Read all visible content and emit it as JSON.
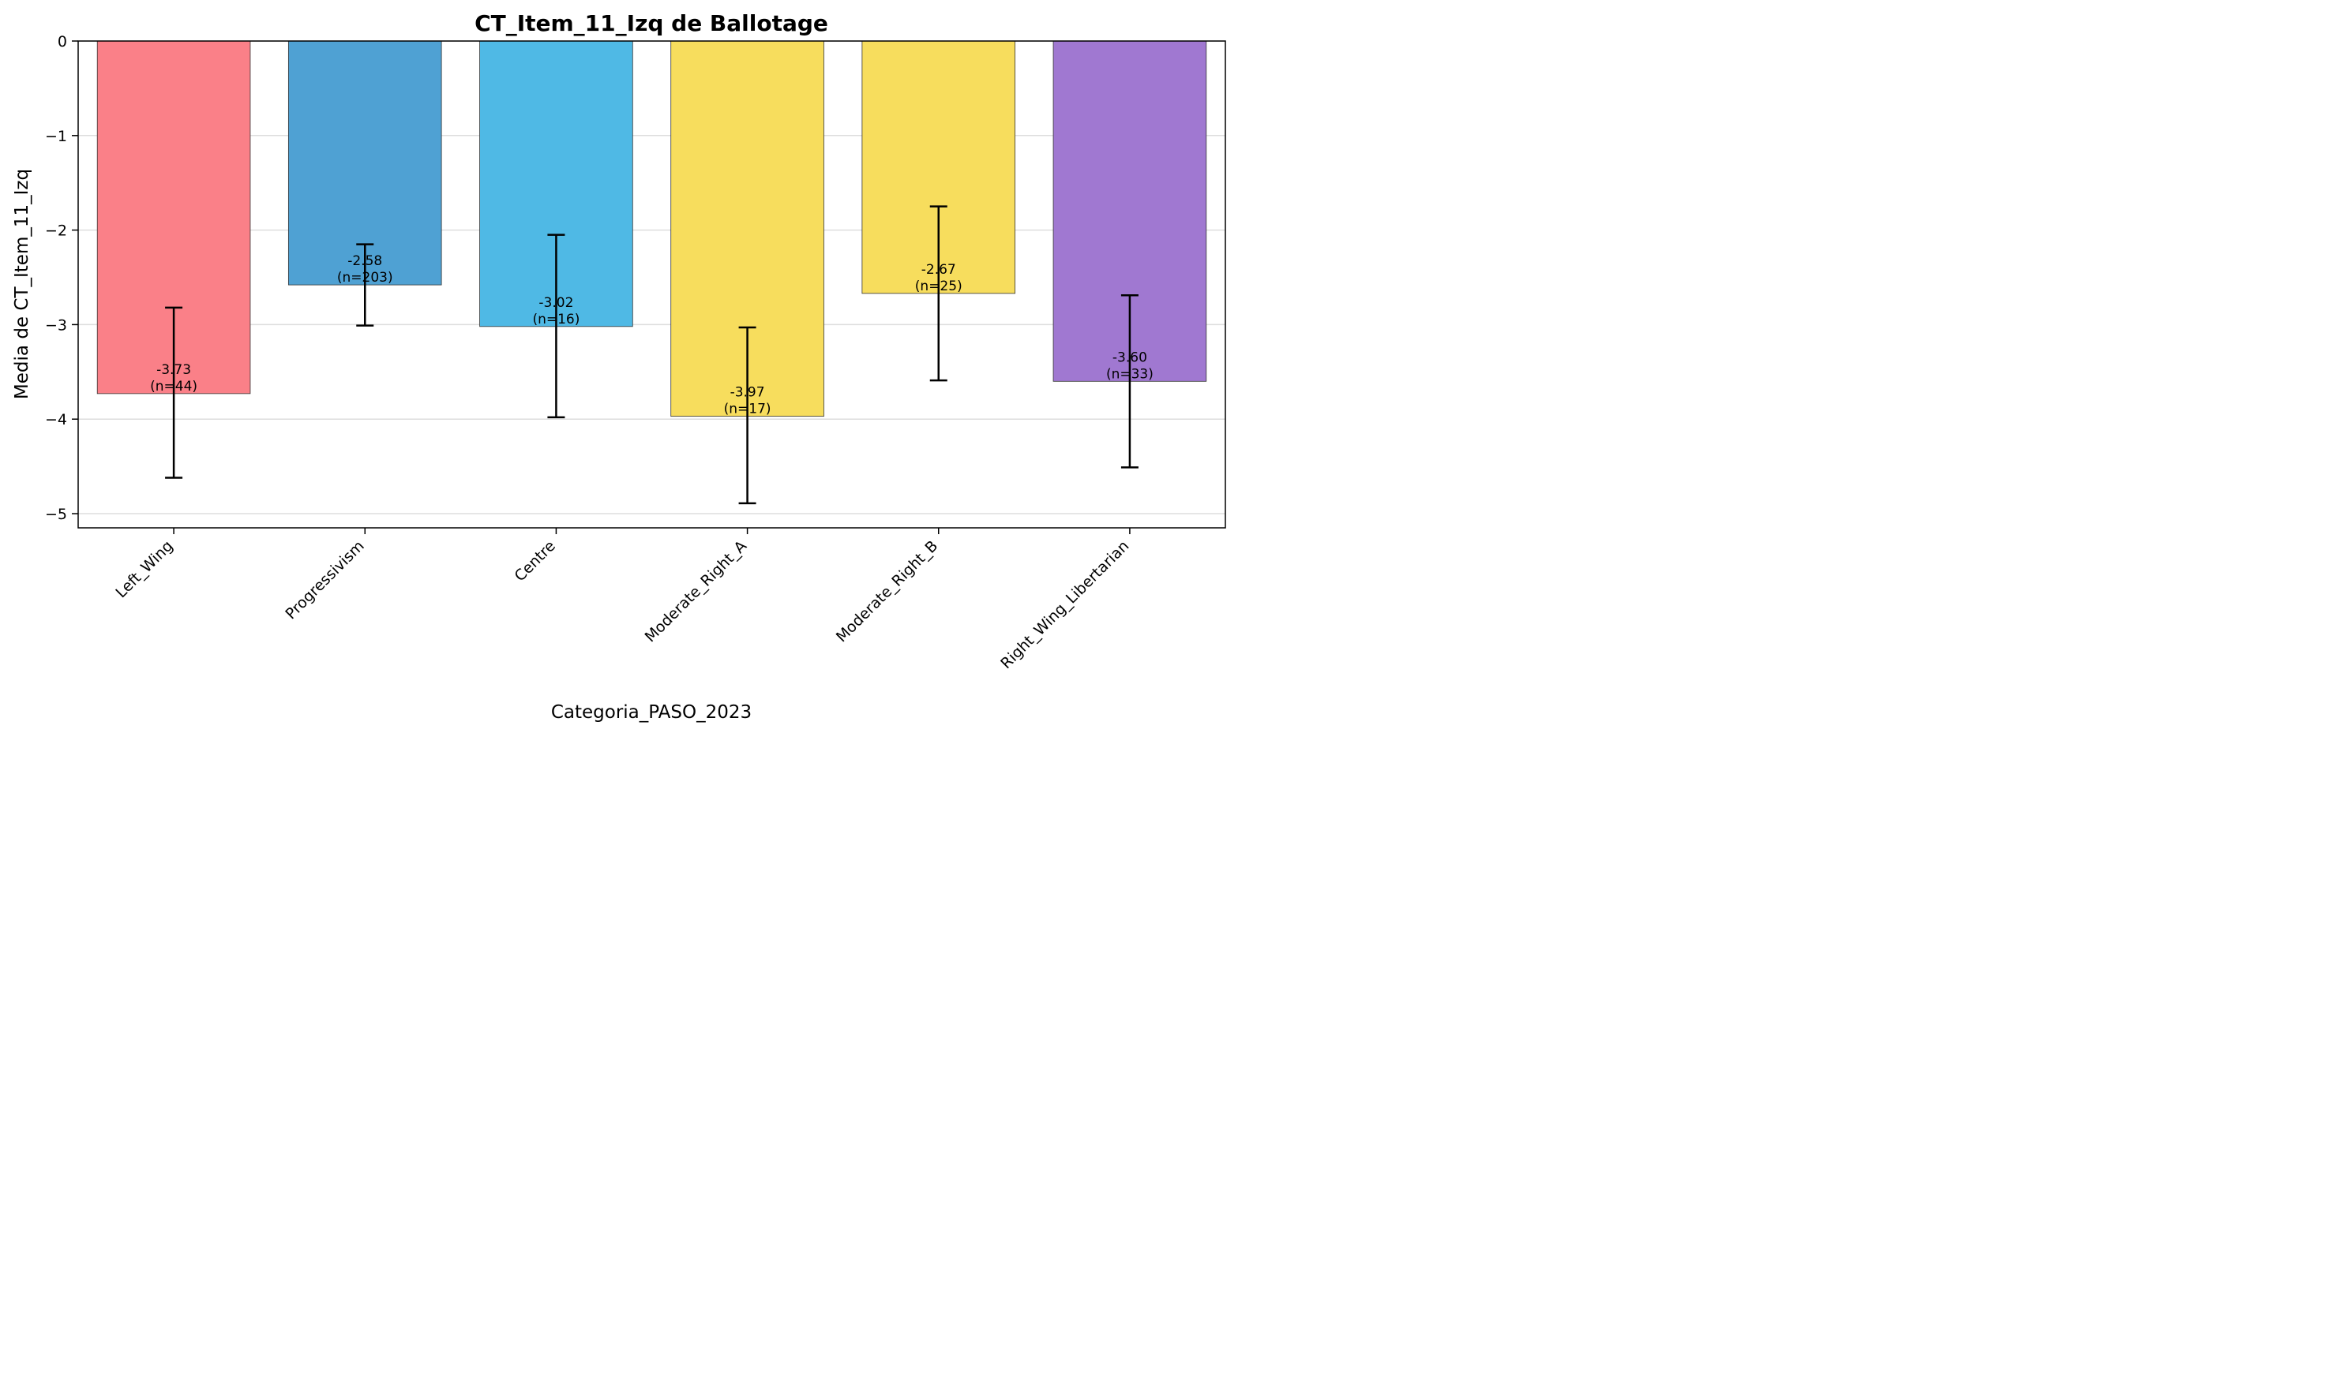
{
  "chart_data": {
    "type": "bar",
    "title": "CT_Item_11_Izq de Ballotage",
    "xlabel": "Categoria_PASO_2023",
    "ylabel": "Media de CT_Item_11_Izq",
    "ylim": [
      -5.15,
      0
    ],
    "yticks": [
      0,
      -1,
      -2,
      -3,
      -4,
      -5
    ],
    "ytick_labels": [
      "0",
      "−1",
      "−2",
      "−3",
      "−4",
      "−5"
    ],
    "grid": "horizontal",
    "categories": [
      "Left_Wing",
      "Progressivism",
      "Centre",
      "Moderate_Right_A",
      "Moderate_Right_B",
      "Right_Wing_Libertarian"
    ],
    "values": [
      -3.73,
      -2.58,
      -3.02,
      -3.97,
      -2.67,
      -3.6
    ],
    "error_low": [
      -4.62,
      -3.01,
      -3.98,
      -4.89,
      -3.59,
      -4.51
    ],
    "error_high": [
      -2.82,
      -2.15,
      -2.05,
      -3.03,
      -1.75,
      -2.69
    ],
    "n": [
      44,
      203,
      16,
      17,
      25,
      33
    ],
    "value_labels": [
      "-3.73",
      "-2.58",
      "-3.02",
      "-3.97",
      "-2.67",
      "-3.60"
    ],
    "n_labels": [
      "(n=44)",
      "(n=203)",
      "(n=16)",
      "(n=17)",
      "(n=25)",
      "(n=33)"
    ],
    "colors": [
      "#fa8088",
      "#4fa1d3",
      "#4fb9e5",
      "#f7dd5d",
      "#f7dd5d",
      "#a078d1"
    ]
  }
}
